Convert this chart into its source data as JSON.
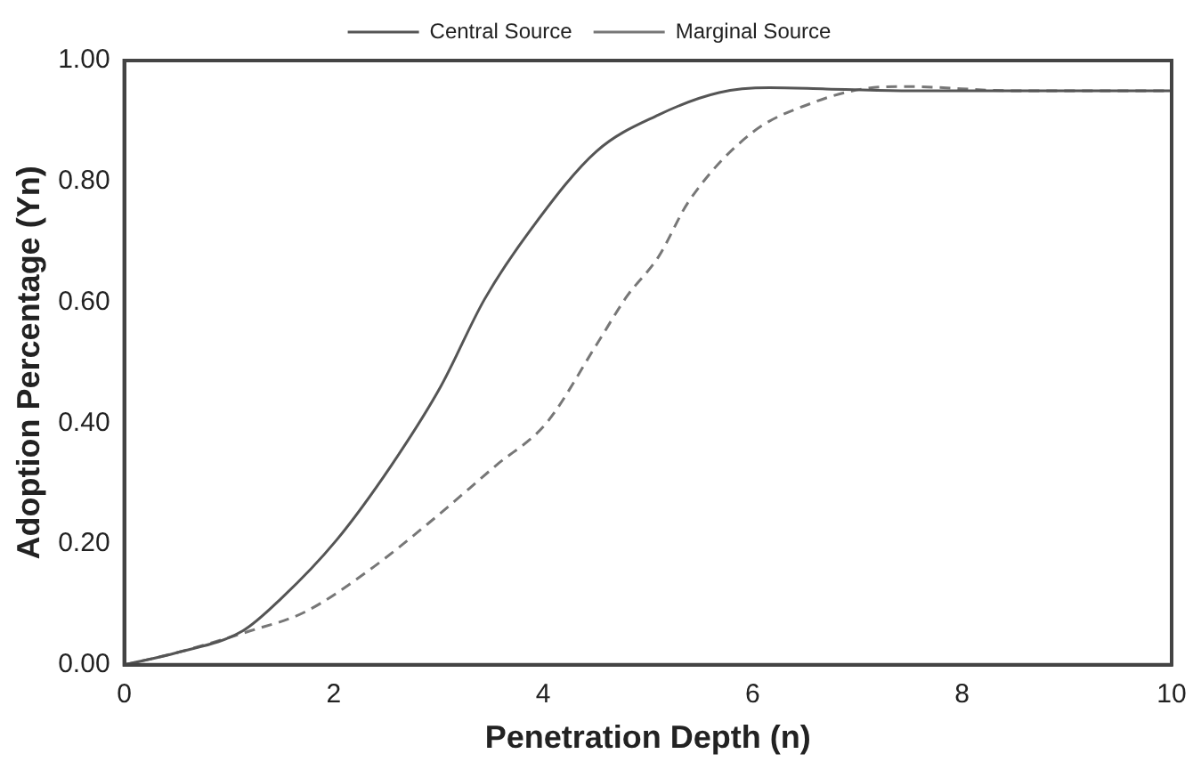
{
  "chart_data": {
    "type": "line",
    "xlabel": "Penetration Depth (n)",
    "ylabel": "Adoption Percentage (Yn)",
    "xlim": [
      0,
      10
    ],
    "ylim": [
      0,
      1
    ],
    "xticks": [
      0,
      2,
      4,
      6,
      8,
      10
    ],
    "yticks": [
      {
        "value": 0,
        "label": "0.00"
      },
      {
        "value": 0.2,
        "label": "0.20"
      },
      {
        "value": 0.4,
        "label": "0.40"
      },
      {
        "value": 0.6,
        "label": "0.60"
      },
      {
        "value": 0.8,
        "label": "0.80"
      },
      {
        "value": 1,
        "label": "1.00"
      }
    ],
    "grid": false,
    "legend": "top",
    "marker": "none",
    "series": [
      {
        "name": "Central Source",
        "color": "#555555",
        "line_style": "solid",
        "x": [
          0,
          0.5,
          1.13,
          1.5,
          2.02,
          2.55,
          3.02,
          3.44,
          3.91,
          4.51,
          5.1,
          5.68,
          6.16,
          6.7,
          7.5,
          8.5,
          10
        ],
        "values": [
          0,
          0.02,
          0.056,
          0.11,
          0.205,
          0.33,
          0.46,
          0.605,
          0.727,
          0.85,
          0.91,
          0.947,
          0.955,
          0.953,
          0.95,
          0.95,
          0.95
        ]
      },
      {
        "name": "Marginal Source",
        "color": "#777777",
        "line_style": "dashed",
        "x": [
          0,
          0.5,
          1.2,
          1.72,
          2.31,
          2.91,
          3.55,
          4.03,
          4.51,
          4.8,
          5.1,
          5.39,
          5.99,
          6.57,
          7.05,
          7.46,
          8.5,
          10
        ],
        "values": [
          0,
          0.02,
          0.056,
          0.087,
          0.153,
          0.235,
          0.33,
          0.4,
          0.53,
          0.61,
          0.675,
          0.767,
          0.88,
          0.93,
          0.953,
          0.957,
          0.95,
          0.95
        ]
      }
    ]
  }
}
